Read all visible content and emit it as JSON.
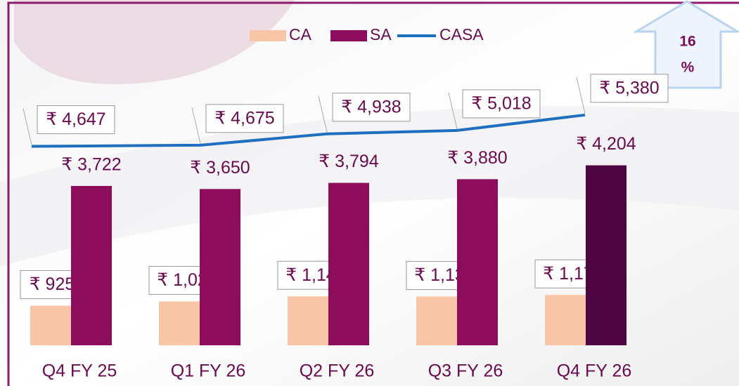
{
  "chart_data": {
    "type": "bar",
    "categories": [
      "Q4 FY 25",
      "Q1 FY 26",
      "Q2 FY 26",
      "Q3 FY 26",
      "Q4 FY 26"
    ],
    "series": [
      {
        "name": "CA",
        "color": "#f8c6a6",
        "values": [
          925,
          1025,
          1144,
          1138,
          1176
        ],
        "value_labels": [
          "₹ 925",
          "₹ 1,025",
          "₹ 1,144",
          "₹ 1,138",
          "₹ 1,176"
        ]
      },
      {
        "name": "SA",
        "color": "#8e0c5c",
        "colors": [
          "#8e0c5c",
          "#8e0c5c",
          "#8e0c5c",
          "#8e0c5c",
          "#4d0642"
        ],
        "values": [
          3722,
          3650,
          3794,
          3880,
          4204
        ],
        "value_labels": [
          "₹ 3,722",
          "₹ 3,650",
          "₹ 3,794",
          "₹ 3,880",
          "₹ 4,204"
        ]
      },
      {
        "name": "CASA",
        "type": "line",
        "color": "#1f6fc0",
        "values": [
          4647,
          4675,
          4938,
          5018,
          5380
        ],
        "value_labels": [
          "₹ 4,647",
          "₹ 4,675",
          "₹ 4,938",
          "₹ 5,018",
          "₹ 5,380"
        ]
      }
    ],
    "annotation": [
      "16",
      "%"
    ]
  }
}
